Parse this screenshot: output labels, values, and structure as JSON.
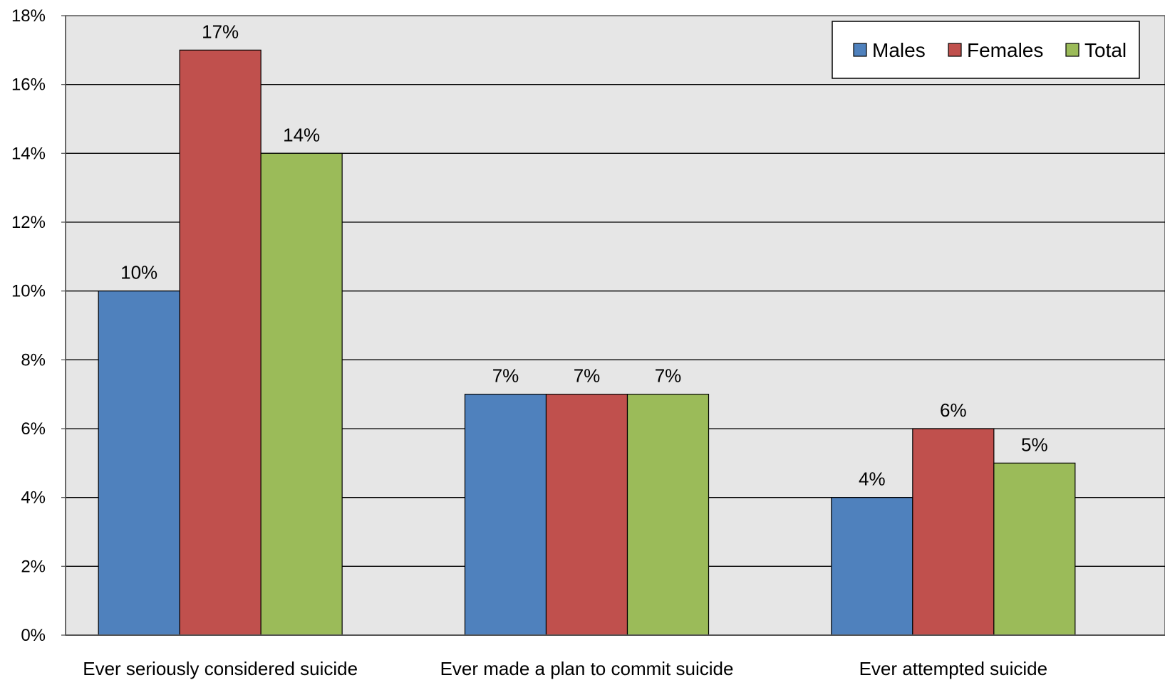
{
  "chart_data": {
    "type": "bar",
    "categories": [
      "Ever seriously considered suicide",
      "Ever made a plan to commit suicide",
      "Ever attempted suicide"
    ],
    "series": [
      {
        "name": "Males",
        "values": [
          10,
          7,
          4
        ],
        "color": "#4f81bd",
        "labels": [
          "10%",
          "7%",
          "4%"
        ]
      },
      {
        "name": "Females",
        "values": [
          17,
          7,
          6
        ],
        "color": "#c0504d",
        "labels": [
          "17%",
          "7%",
          "6%"
        ]
      },
      {
        "name": "Total",
        "values": [
          14,
          7,
          5
        ],
        "color": "#9bbb59",
        "labels": [
          "14%",
          "7%",
          "5%"
        ]
      }
    ],
    "ylim": [
      0,
      18
    ],
    "yticks": [
      "0%",
      "2%",
      "4%",
      "6%",
      "8%",
      "10%",
      "12%",
      "14%",
      "16%",
      "18%"
    ],
    "grid": true,
    "legend_position": "top-right",
    "plot_background": "#e6e6e6"
  }
}
